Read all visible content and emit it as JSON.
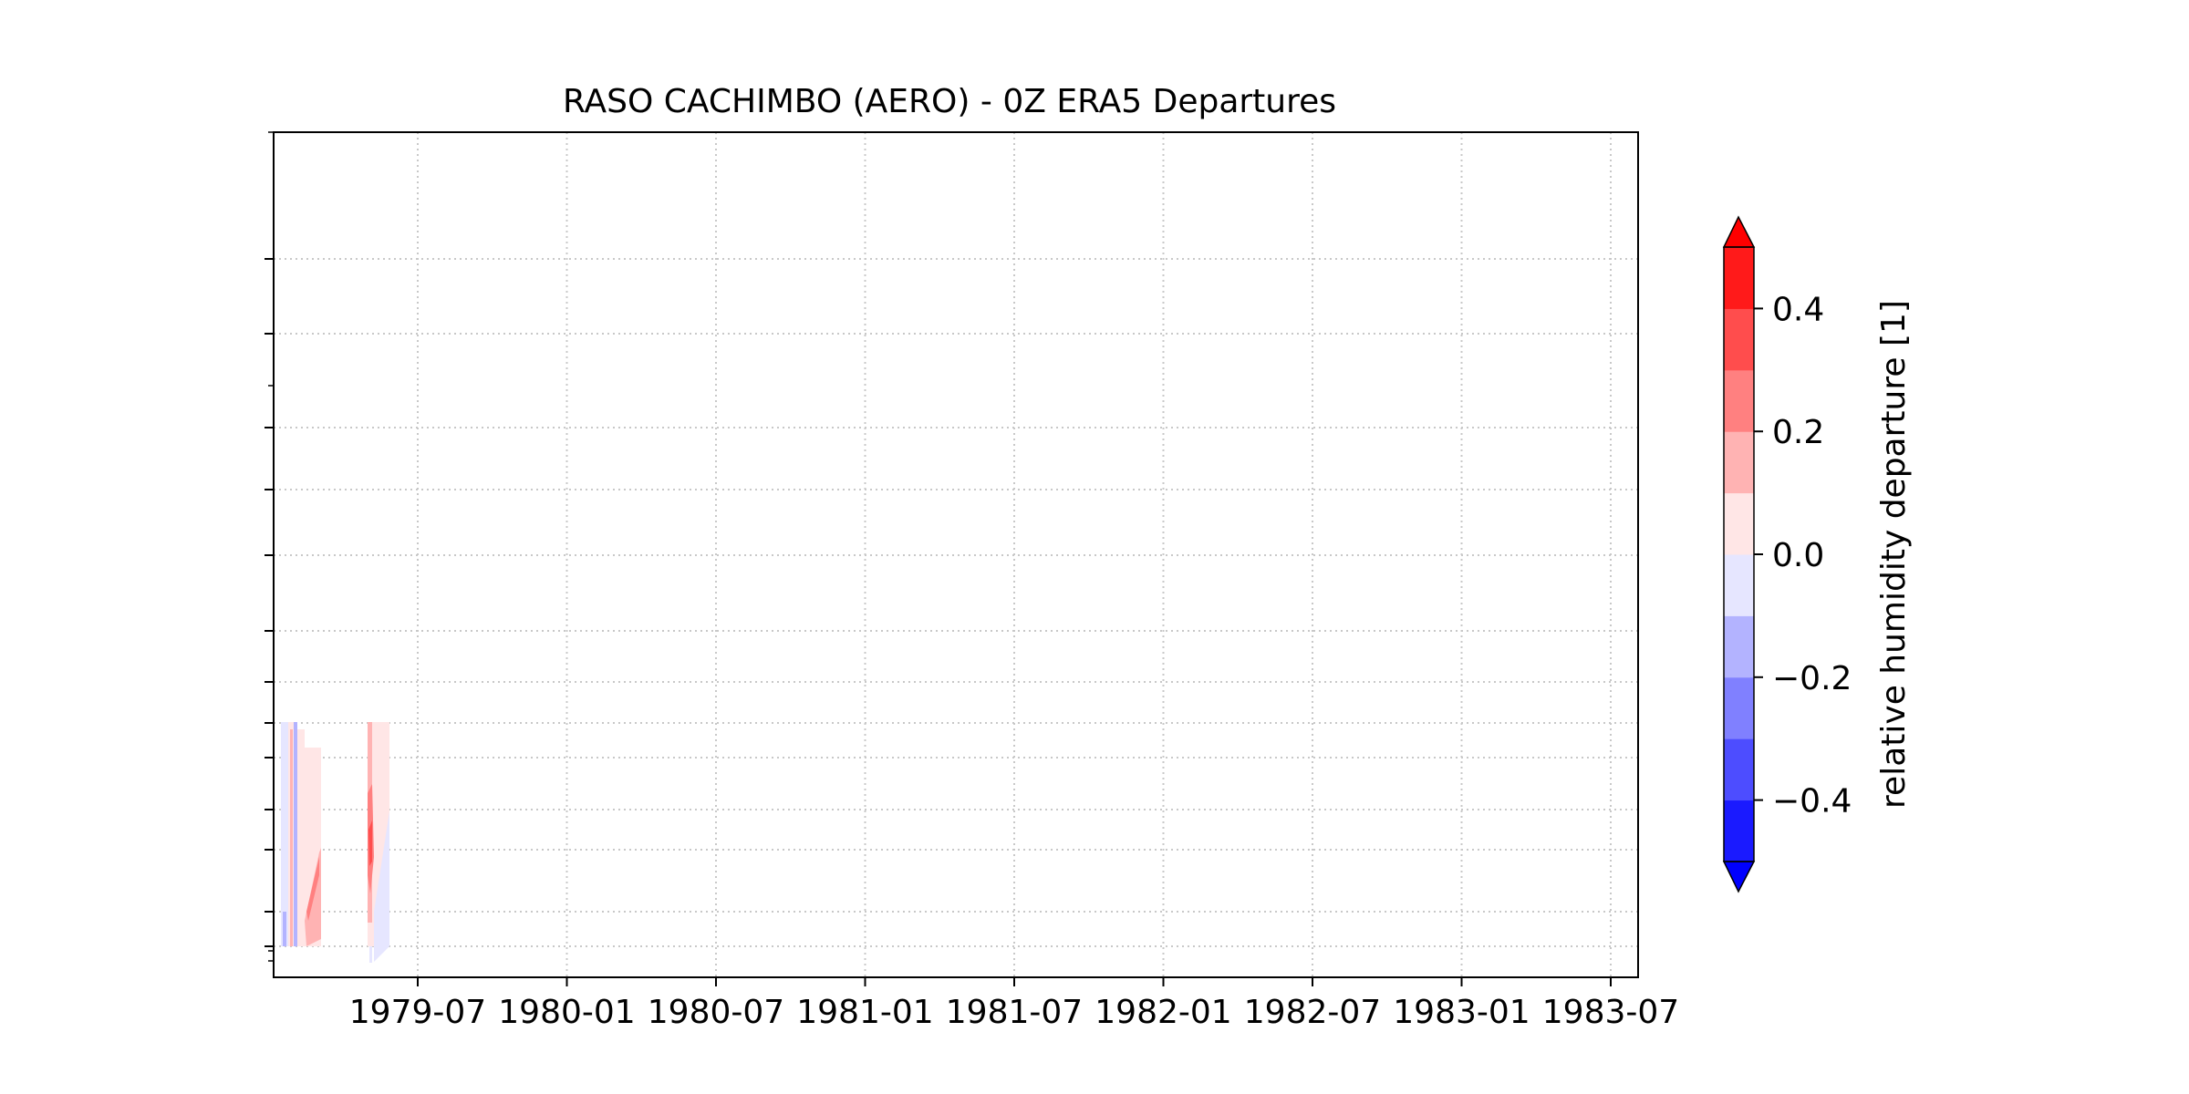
{
  "chart_data": {
    "type": "heatmap",
    "title": "RASO CACHIMBO (AERO) - 0Z ERA5 Departures",
    "xlabel": "",
    "ylabel": "",
    "x_ticks": [
      "1979-07",
      "1980-01",
      "1980-07",
      "1981-01",
      "1981-07",
      "1982-01",
      "1982-07",
      "1983-01",
      "1983-07"
    ],
    "x_range": [
      "1979-01",
      "1983-08"
    ],
    "grid": true,
    "colorbar": {
      "label": "relative humidity departure [1]",
      "levels": [
        -0.5,
        -0.4,
        -0.3,
        -0.2,
        -0.1,
        0.0,
        0.1,
        0.2,
        0.3,
        0.4,
        0.5
      ],
      "colors": [
        "#1a1aff",
        "#4d4dff",
        "#8080ff",
        "#b3b3ff",
        "#e6e6ff",
        "#ffe6e6",
        "#ffb3b3",
        "#ff8080",
        "#ff4d4d",
        "#ff1a1a"
      ],
      "under_color": "#0000ff",
      "over_color": "#ff0000",
      "tick_values": [
        -0.4,
        -0.2,
        0.0,
        0.2,
        0.4
      ],
      "tick_labels": [
        "−0.4",
        "−0.2",
        "0.0",
        "0.2",
        "0.4"
      ],
      "extend": "both"
    },
    "data_note_visible_region": [
      {
        "period": [
          "1979-01",
          "1979-03"
        ],
        "dominant_values": [
          -0.1,
          0.1,
          0.2
        ]
      },
      {
        "period": [
          "1979-05",
          "1979-06"
        ],
        "dominant_values": [
          0.05,
          0.3
        ]
      }
    ]
  }
}
